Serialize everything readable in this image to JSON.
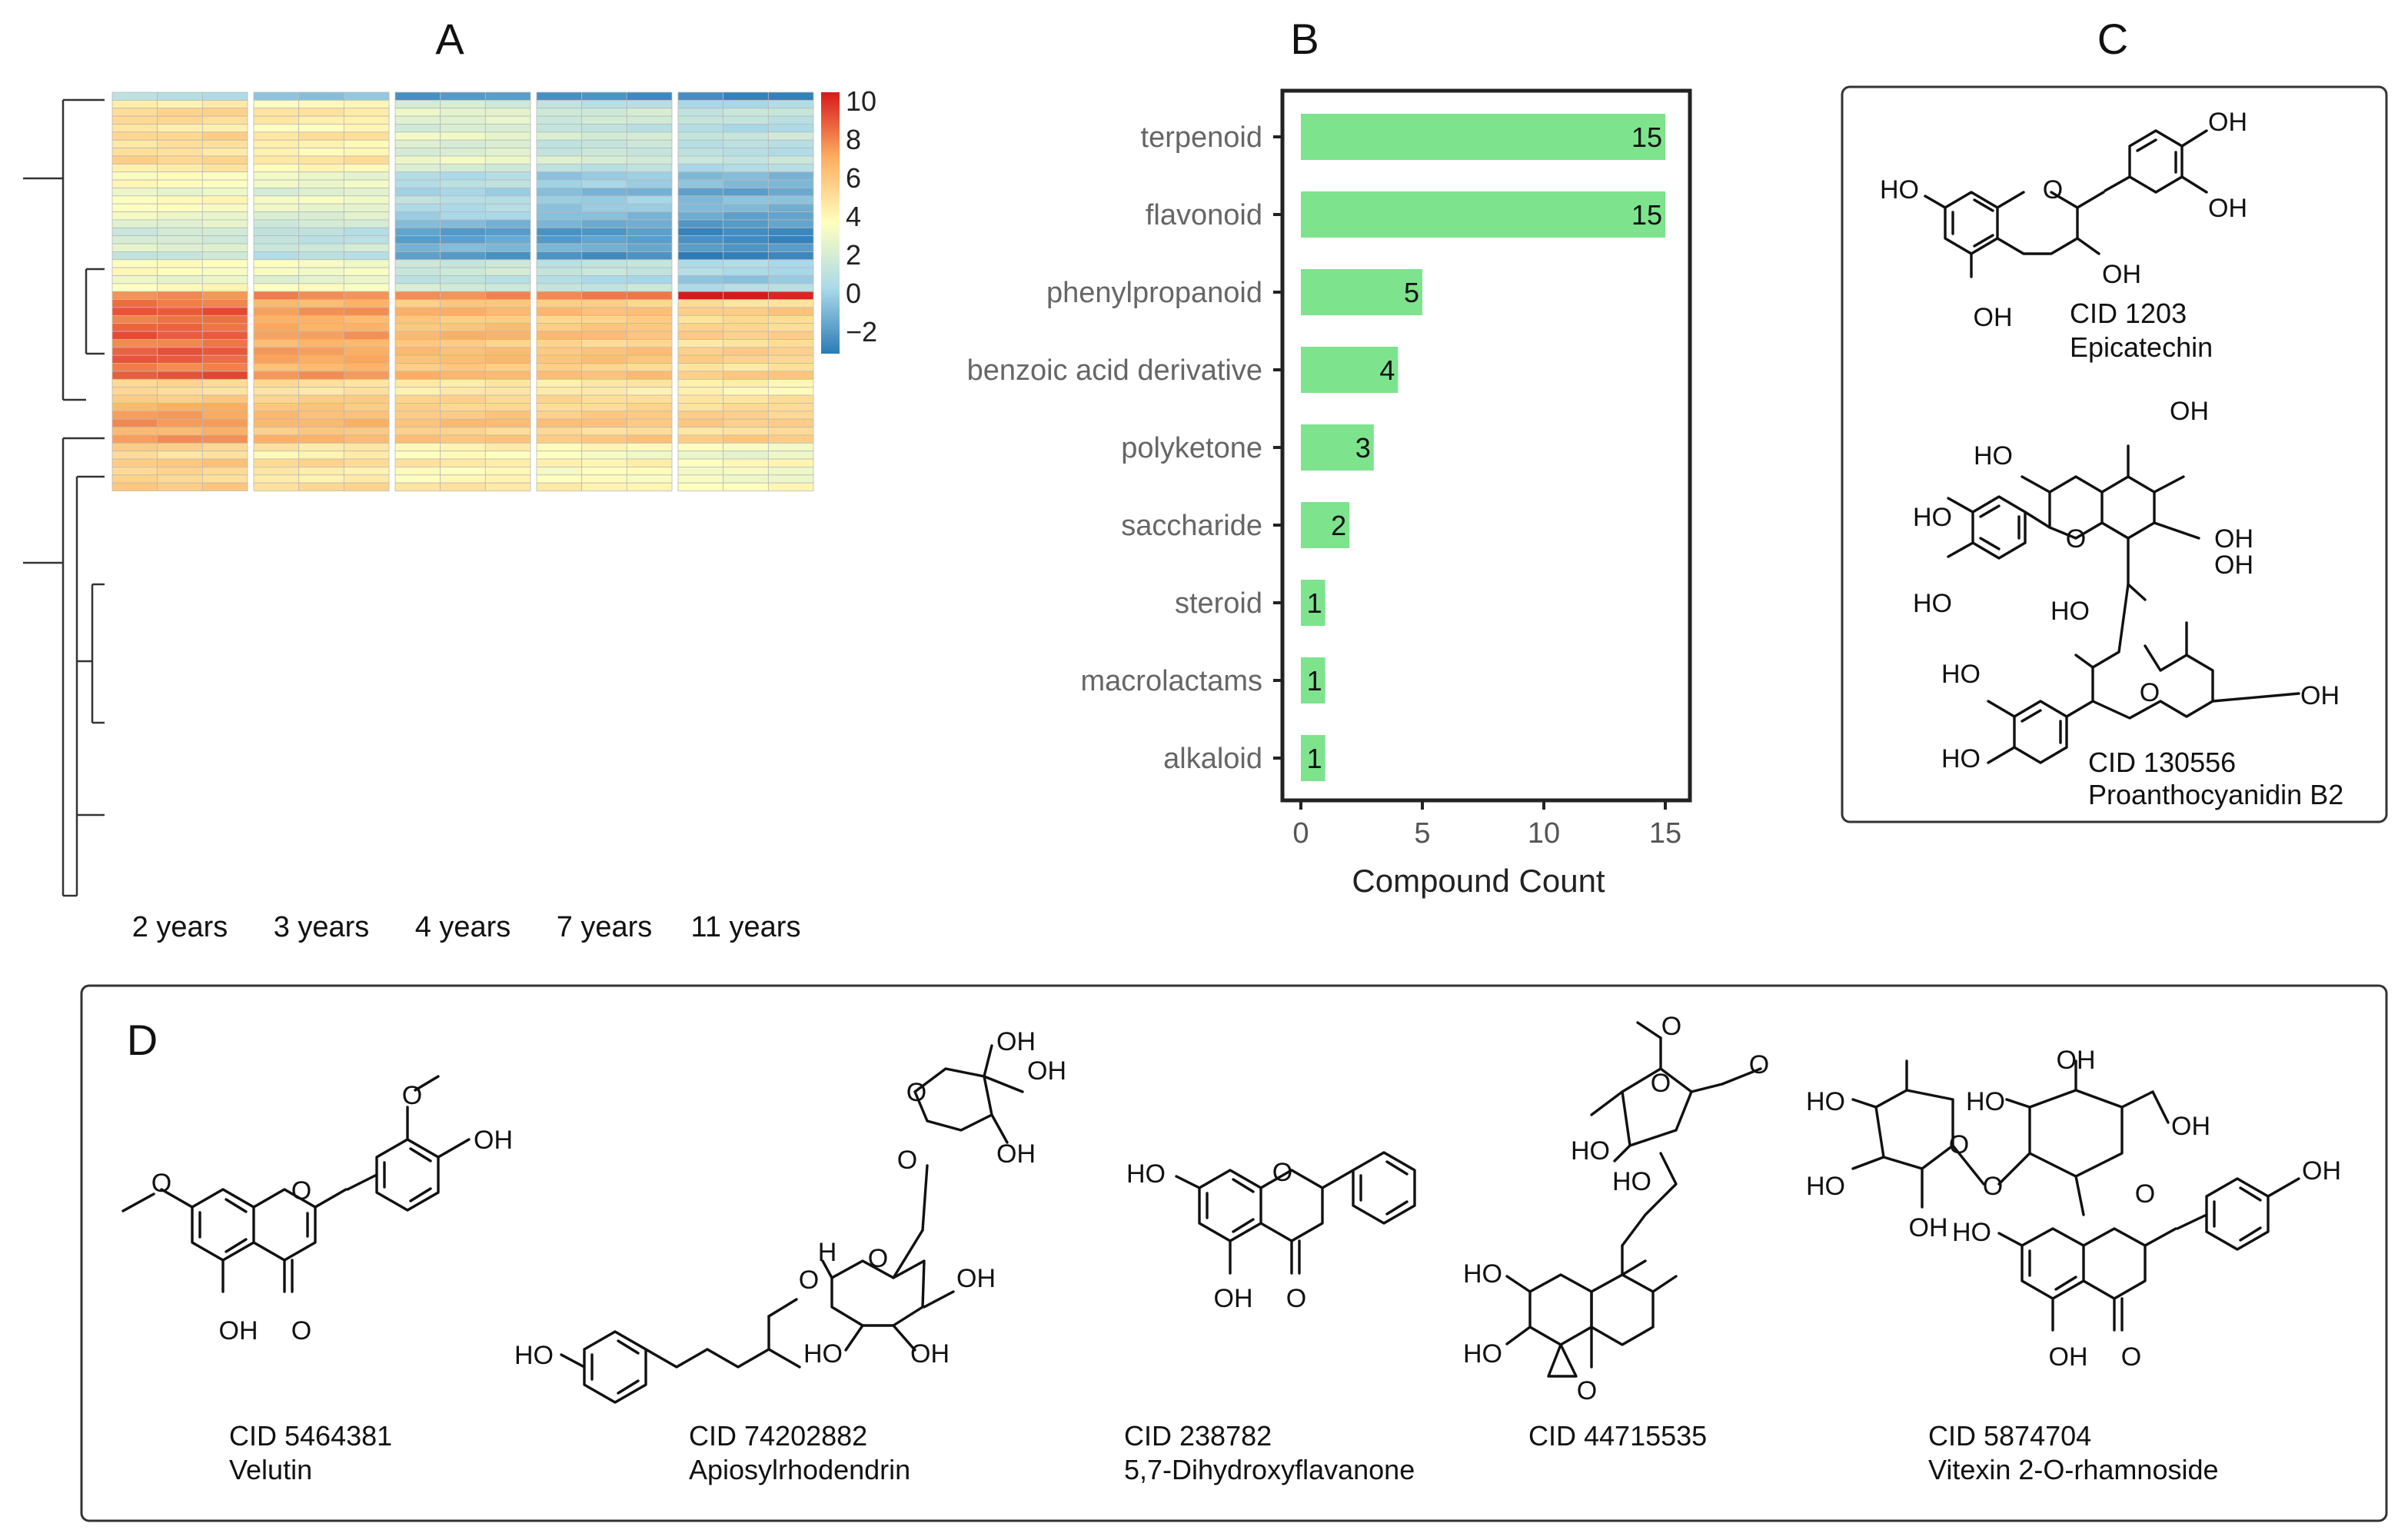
{
  "panel_labels": {
    "a": "A",
    "b": "B",
    "c": "C",
    "d": "D"
  },
  "chart_data": [
    {
      "type": "heatmap",
      "panel": "A",
      "column_groups": [
        "2 years",
        "3 years",
        "4 years",
        "7 years",
        "11 years"
      ],
      "replicates_per_group": 3,
      "color_scale": {
        "min": -2,
        "max": 10,
        "ticks": [
          "10",
          "8",
          "6",
          "4",
          "2",
          "0",
          "−2"
        ],
        "colors": [
          "#2c7bb6",
          "#abd9e9",
          "#ffffbf",
          "#fdae61",
          "#d7191c"
        ]
      },
      "row_group_means": [
        [
          1,
          0,
          -1.5,
          -1.8,
          -2
        ],
        [
          5.2,
          4.6,
          2.9,
          2.1,
          1.6
        ],
        [
          3.8,
          3.2,
          1.2,
          0.4,
          -0.2
        ],
        [
          2.5,
          1.8,
          -0.6,
          -0.8,
          -1.4
        ],
        [
          3.8,
          3.5,
          2.0,
          1.6,
          0.9
        ],
        [
          7.6,
          7.8,
          7.8,
          8.0,
          10
        ],
        [
          8.4,
          7.0,
          6.3,
          6.0,
          5.5
        ],
        [
          5.5,
          5.3,
          5.0,
          4.9,
          4.6
        ],
        [
          7.2,
          6.4,
          6.0,
          5.8,
          5.6
        ],
        [
          5.6,
          4.9,
          4.4,
          4.1,
          3.7
        ]
      ],
      "row_counts": [
        1,
        9,
        6,
        5,
        4,
        1,
        10,
        3,
        5,
        6
      ]
    },
    {
      "type": "bar",
      "panel": "B",
      "orientation": "horizontal",
      "categories": [
        "terpenoid",
        "flavonoid",
        "phenylpropanoid",
        "benzoic acid derivative",
        "polyketone",
        "saccharide",
        "steroid",
        "macrolactams",
        "alkaloid"
      ],
      "values": [
        15,
        15,
        5,
        4,
        3,
        2,
        1,
        1,
        1
      ],
      "data_labels": [
        "15",
        "15",
        "5",
        "4",
        "3",
        "2",
        "1",
        "1",
        "1"
      ],
      "xlabel": "Compound Count",
      "xticks": [
        "0",
        "5",
        "10",
        "15"
      ],
      "xlim": [
        0,
        15
      ],
      "bar_color": "#7de38d"
    }
  ],
  "panel_c": {
    "compound1": {
      "cid": "CID 1203",
      "name": "Epicatechin"
    },
    "compound2": {
      "cid": "CID 130556",
      "name": "Proanthocyanidin B2"
    }
  },
  "panel_d": {
    "compounds": [
      {
        "cid": "CID 5464381",
        "name": "Velutin"
      },
      {
        "cid": "CID 74202882",
        "name": "Apiosylrhodendrin"
      },
      {
        "cid": "CID 238782",
        "name": "5,7-Dihydroxyflavanone"
      },
      {
        "cid": "CID 44715535",
        "name": ""
      },
      {
        "cid": "CID 5874704",
        "name": "Vitexin 2-O-rhamnoside"
      }
    ]
  },
  "atoms": {
    "oh": "OH",
    "ho": "HO",
    "o": "O",
    "h": "H"
  }
}
